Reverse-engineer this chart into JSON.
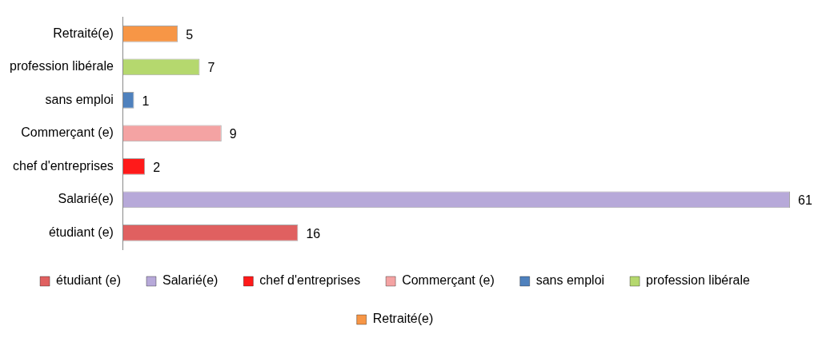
{
  "chart_data": {
    "type": "bar",
    "orientation": "horizontal",
    "categories": [
      "Retraité(e)",
      "profession libérale",
      "sans emploi",
      "Commerçant (e)",
      "chef d'entreprises",
      "Salarié(e)",
      "étudiant (e)"
    ],
    "series": [
      {
        "name": "étudiant (e)",
        "color": "#e06060",
        "values": [
          null,
          null,
          null,
          null,
          null,
          null,
          16
        ]
      },
      {
        "name": "Salarié(e)",
        "color": "#b7a9d9",
        "values": [
          null,
          null,
          null,
          null,
          null,
          61,
          null
        ]
      },
      {
        "name": "chef d'entreprises",
        "color": "#ff1a1a",
        "values": [
          null,
          null,
          null,
          null,
          2,
          null,
          null
        ]
      },
      {
        "name": "Commerçant (e)",
        "color": "#f4a3a3",
        "values": [
          null,
          null,
          null,
          9,
          null,
          null,
          null
        ]
      },
      {
        "name": "sans emploi",
        "color": "#4f81bd",
        "values": [
          null,
          null,
          1,
          null,
          null,
          null,
          null
        ]
      },
      {
        "name": "profession libérale",
        "color": "#b5d86e",
        "values": [
          null,
          7,
          null,
          null,
          null,
          null,
          null
        ]
      },
      {
        "name": "Retraité(e)",
        "color": "#f79646",
        "values": [
          5,
          null,
          null,
          null,
          null,
          null,
          null
        ]
      }
    ],
    "data_labels": true,
    "tick_labels": "y",
    "legend": "bottom"
  }
}
